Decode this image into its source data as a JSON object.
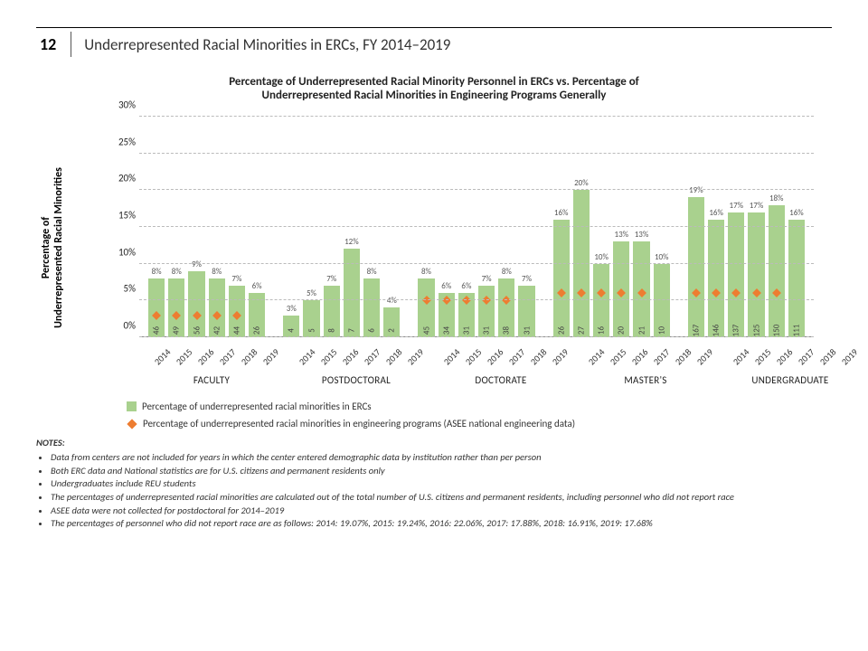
{
  "page_number": "12",
  "page_title": "Underrepresented Racial Minorities in ERCs, FY 2014–2019",
  "chart_title_l1": "Percentage of Underrepresented Racial Minority Personnel in ERCs vs. Percentage of",
  "chart_title_l2": "Underrepresented Racial Minorities in Engineering Programs Generally",
  "yaxis_title_l1": "Percentage of",
  "yaxis_title_l2": "Underrepresented Racial Minorities",
  "colors": {
    "bar": "#a9d18e",
    "diamond": "#ed7d31",
    "grid": "#bfbfbf",
    "text": "#333333"
  },
  "ylim_max_pct": 30,
  "yticks": [
    0,
    5,
    10,
    15,
    20,
    25,
    30
  ],
  "years": [
    "2014",
    "2015",
    "2016",
    "2017",
    "2018",
    "2019"
  ],
  "groups": [
    {
      "label": "FACULTY",
      "bars": [
        {
          "pct": 8,
          "n": "46",
          "marker": 3
        },
        {
          "pct": 8,
          "n": "49",
          "marker": 3
        },
        {
          "pct": 9,
          "n": "56",
          "marker": 3
        },
        {
          "pct": 8,
          "n": "42",
          "marker": 3
        },
        {
          "pct": 7,
          "n": "44",
          "marker": 3
        },
        {
          "pct": 6,
          "n": "26",
          "marker": null
        }
      ]
    },
    {
      "label": "POSTDOCTORAL",
      "bars": [
        {
          "pct": 3,
          "n": "4",
          "marker": null
        },
        {
          "pct": 5,
          "n": "5",
          "marker": null
        },
        {
          "pct": 7,
          "n": "8",
          "marker": null
        },
        {
          "pct": 12,
          "n": "7",
          "marker": null
        },
        {
          "pct": 8,
          "n": "6",
          "marker": null
        },
        {
          "pct": 4,
          "n": "2",
          "marker": null
        }
      ]
    },
    {
      "label": "DOCTORATE",
      "bars": [
        {
          "pct": 8,
          "n": "45",
          "marker": 5
        },
        {
          "pct": 6,
          "n": "34",
          "marker": 5
        },
        {
          "pct": 6,
          "n": "31",
          "marker": 5
        },
        {
          "pct": 7,
          "n": "31",
          "marker": 5
        },
        {
          "pct": 8,
          "n": "38",
          "marker": 5
        },
        {
          "pct": 7,
          "n": "31",
          "marker": null
        }
      ]
    },
    {
      "label": "MASTER'S",
      "bars": [
        {
          "pct": 16,
          "n": "26",
          "marker": 6
        },
        {
          "pct": 20,
          "n": "27",
          "marker": 6
        },
        {
          "pct": 10,
          "n": "16",
          "marker": 6
        },
        {
          "pct": 13,
          "n": "20",
          "marker": 6
        },
        {
          "pct": 13,
          "n": "21",
          "marker": 6
        },
        {
          "pct": 10,
          "n": "10",
          "marker": null
        }
      ]
    },
    {
      "label": "UNDERGRADUATE",
      "bars": [
        {
          "pct": 19,
          "n": "167",
          "marker": 6
        },
        {
          "pct": 16,
          "n": "146",
          "marker": 6
        },
        {
          "pct": 17,
          "n": "137",
          "marker": 6
        },
        {
          "pct": 17,
          "n": "125",
          "marker": 6
        },
        {
          "pct": 18,
          "n": "150",
          "marker": 6
        },
        {
          "pct": 16,
          "n": "111",
          "marker": null
        }
      ]
    }
  ],
  "legend": {
    "series1": "Percentage of underrepresented racial minorities in ERCs",
    "series2": "Percentage of underrepresented racial minorities in engineering programs (ASEE national engineering data)"
  },
  "notes_header": "NOTES:",
  "notes": [
    "Data from centers are not included for years in which the center entered demographic data by institution rather than per person",
    "Both ERC data and National statistics are for U.S. citizens and permanent residents only",
    "Undergraduates include REU students",
    "The percentages of underrepresented racial minorities are calculated out of the total number of U.S. citizens and permanent residents, including personnel who did not report race",
    "ASEE data were not collected for postdoctoral for 2014–2019",
    "The percentages of personnel who did not report race are as follows: 2014: 19.07%, 2015: 19.24%, 2016: 22.06%, 2017: 17.88%, 2018: 16.91%, 2019: 17.68%"
  ]
}
